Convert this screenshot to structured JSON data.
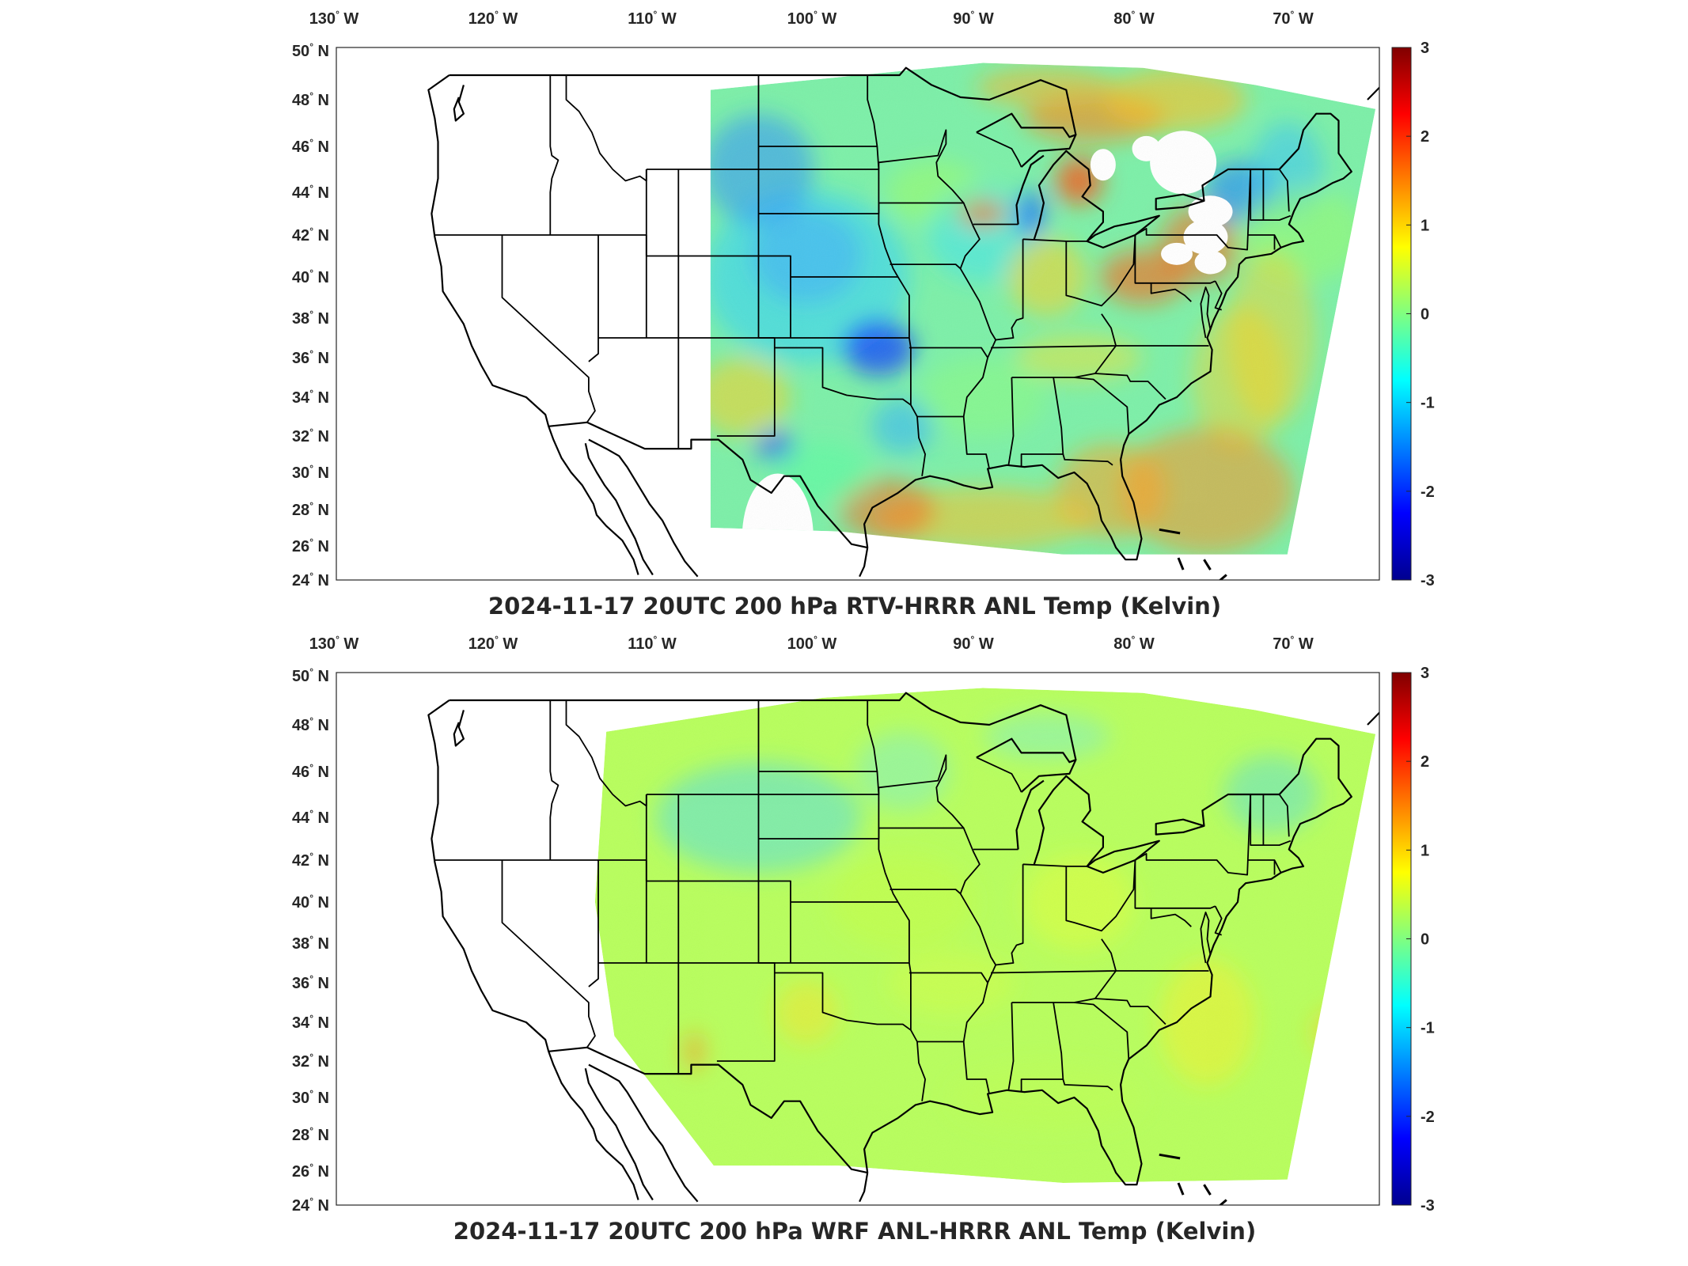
{
  "panels": [
    {
      "title": "2024-11-17 20UTC 200 hPa RTV-HRRR ANL Temp (Kelvin)",
      "coverage": "partial",
      "lon_labels": [
        "130",
        "120",
        "110",
        "100",
        "90",
        "80",
        "70"
      ],
      "lon_suffix": "W",
      "lat_labels": [
        "50",
        "48",
        "46",
        "44",
        "42",
        "40",
        "38",
        "36",
        "34",
        "32",
        "30",
        "28",
        "26",
        "24"
      ],
      "lat_suffix": "N",
      "colorbar_ticks": [
        "3",
        "2",
        "1",
        "0",
        "-1",
        "-2",
        "-3"
      ]
    },
    {
      "title": "2024-11-17 20UTC 200 hPa WRF ANL-HRRR ANL Temp (Kelvin)",
      "coverage": "full",
      "lon_labels": [
        "130",
        "120",
        "110",
        "100",
        "90",
        "80",
        "70"
      ],
      "lon_suffix": "W",
      "lat_labels": [
        "50",
        "48",
        "46",
        "44",
        "42",
        "40",
        "38",
        "36",
        "34",
        "32",
        "30",
        "28",
        "26",
        "24"
      ],
      "lat_suffix": "N",
      "colorbar_ticks": [
        "3",
        "2",
        "1",
        "0",
        "-1",
        "-2",
        "-3"
      ]
    }
  ],
  "colormap": [
    "#00008f",
    "#0000ff",
    "#0080ff",
    "#00ffff",
    "#80ff80",
    "#ffff00",
    "#ff8000",
    "#ff0000",
    "#800000"
  ],
  "colors": {
    "border_lines": "#000000",
    "frame": "#262626",
    "missing_data": "#ffffff"
  }
}
